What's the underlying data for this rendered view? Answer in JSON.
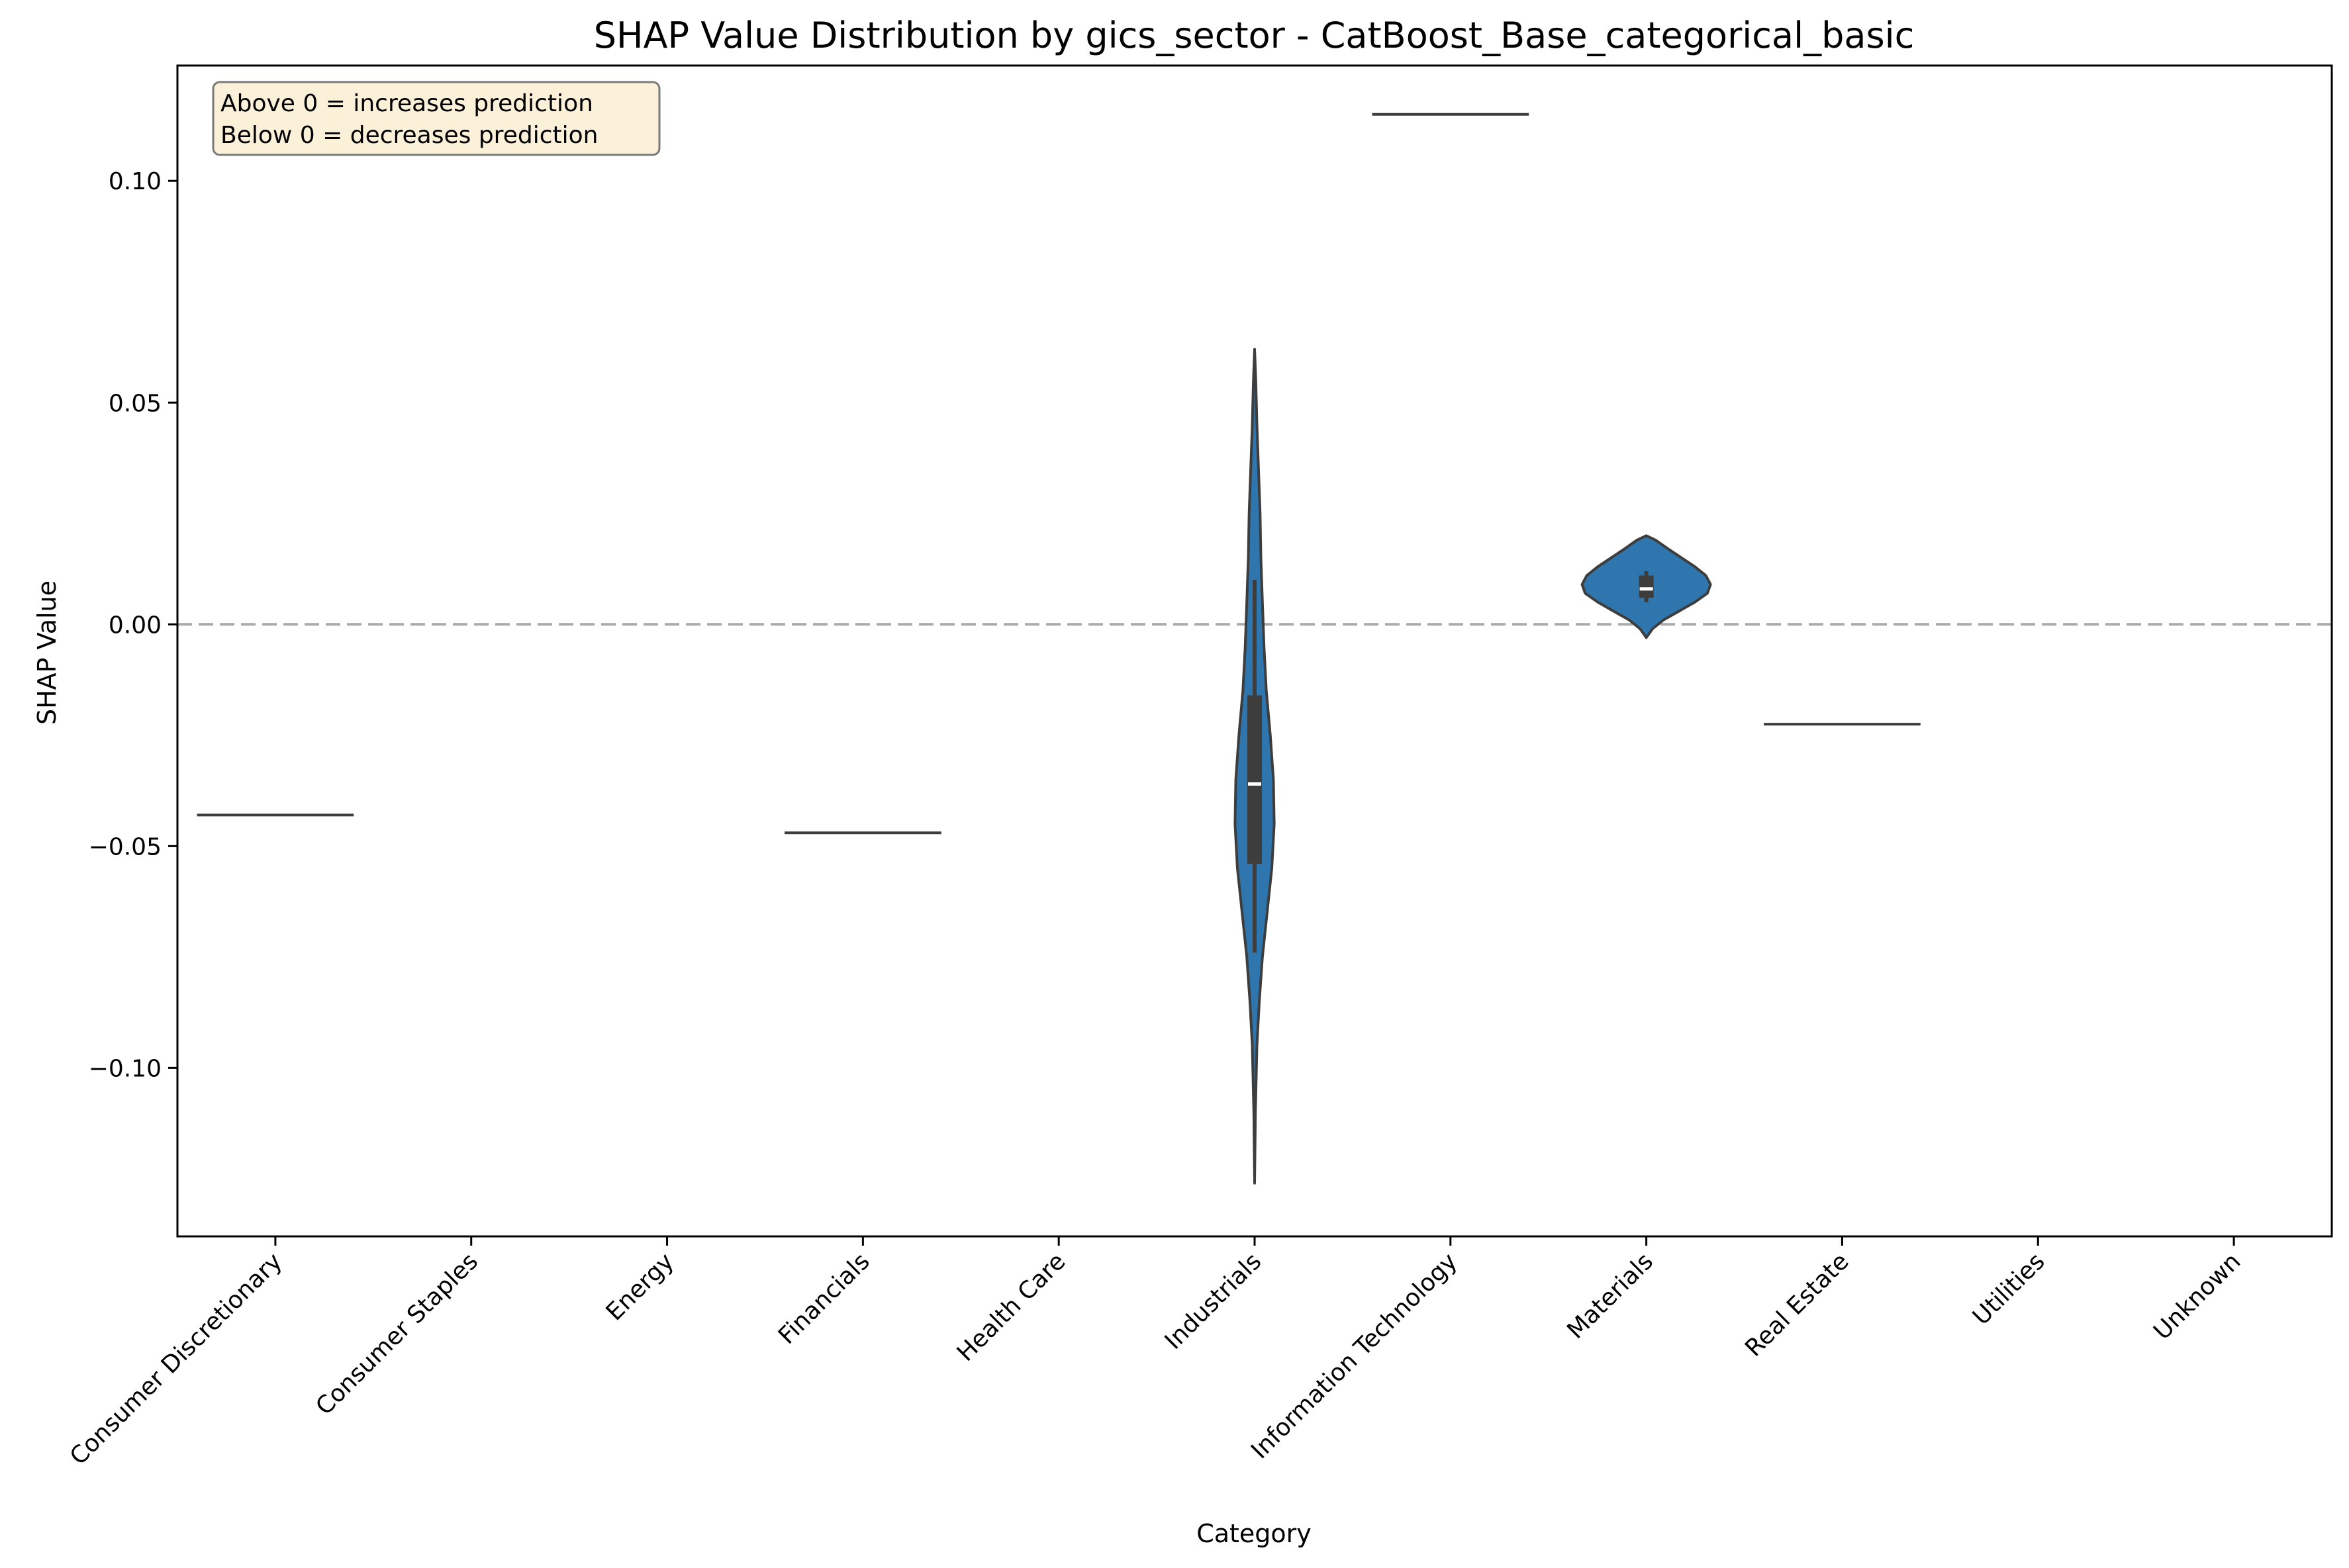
{
  "chart_data": {
    "type": "violin",
    "title": "SHAP Value Distribution by gics_sector - CatBoost_Base_categorical_basic",
    "xlabel": "Category",
    "ylabel": "SHAP Value",
    "ylim": [
      -0.138,
      0.126
    ],
    "yticks": [
      0.1,
      0.05,
      0.0,
      -0.05,
      -0.1
    ],
    "ytick_labels": [
      "0.10",
      "0.05",
      "0.00",
      "−0.05",
      "−0.10"
    ],
    "categories": [
      "Consumer Discretionary",
      "Consumer Staples",
      "Energy",
      "Financials",
      "Health Care",
      "Industrials",
      "Information Technology",
      "Materials",
      "Real Estate",
      "Utilities",
      "Unknown"
    ],
    "reference_line": {
      "y": 0.0,
      "style": "dashed",
      "color": "#aaaaaa"
    },
    "annotation": {
      "lines": [
        "Above 0 = increases prediction",
        "Below 0 = decreases prediction"
      ],
      "placement": "top-left",
      "background": "#fbf0d8",
      "border": "#7a7a7a"
    },
    "colors": {
      "violin_fill": "#2f75ae",
      "violin_edge": "#3d3d3d",
      "box": "#3d3d3d",
      "median": "#ffffff"
    },
    "series": [
      {
        "category": "Consumer Discretionary",
        "kind": "single",
        "value": -0.043
      },
      {
        "category": "Financials",
        "kind": "single",
        "value": -0.047
      },
      {
        "category": "Industrials",
        "kind": "violin",
        "density": [
          [
            -0.126,
            0.0
          ],
          [
            -0.11,
            0.01
          ],
          [
            -0.095,
            0.03
          ],
          [
            -0.085,
            0.06
          ],
          [
            -0.075,
            0.1
          ],
          [
            -0.065,
            0.16
          ],
          [
            -0.055,
            0.22
          ],
          [
            -0.045,
            0.25
          ],
          [
            -0.035,
            0.24
          ],
          [
            -0.025,
            0.2
          ],
          [
            -0.015,
            0.15
          ],
          [
            -0.005,
            0.12
          ],
          [
            0.005,
            0.1
          ],
          [
            0.015,
            0.08
          ],
          [
            0.025,
            0.07
          ],
          [
            0.035,
            0.05
          ],
          [
            0.045,
            0.03
          ],
          [
            0.055,
            0.015
          ],
          [
            0.062,
            0.0
          ]
        ],
        "whisker": [
          -0.074,
          0.01
        ],
        "quartiles": [
          -0.054,
          -0.016
        ],
        "median": -0.036
      },
      {
        "category": "Information Technology",
        "kind": "single",
        "value": 0.115
      },
      {
        "category": "Materials",
        "kind": "violin",
        "density": [
          [
            -0.003,
            0.0
          ],
          [
            -0.001,
            0.08
          ],
          [
            0.001,
            0.22
          ],
          [
            0.003,
            0.42
          ],
          [
            0.005,
            0.62
          ],
          [
            0.007,
            0.78
          ],
          [
            0.009,
            0.82
          ],
          [
            0.011,
            0.76
          ],
          [
            0.013,
            0.62
          ],
          [
            0.015,
            0.45
          ],
          [
            0.017,
            0.28
          ],
          [
            0.019,
            0.12
          ],
          [
            0.02,
            0.0
          ]
        ],
        "whisker": [
          0.005,
          0.012
        ],
        "quartiles": [
          0.006,
          0.011
        ],
        "median": 0.008
      },
      {
        "category": "Real Estate",
        "kind": "single",
        "value": -0.0225
      }
    ]
  }
}
